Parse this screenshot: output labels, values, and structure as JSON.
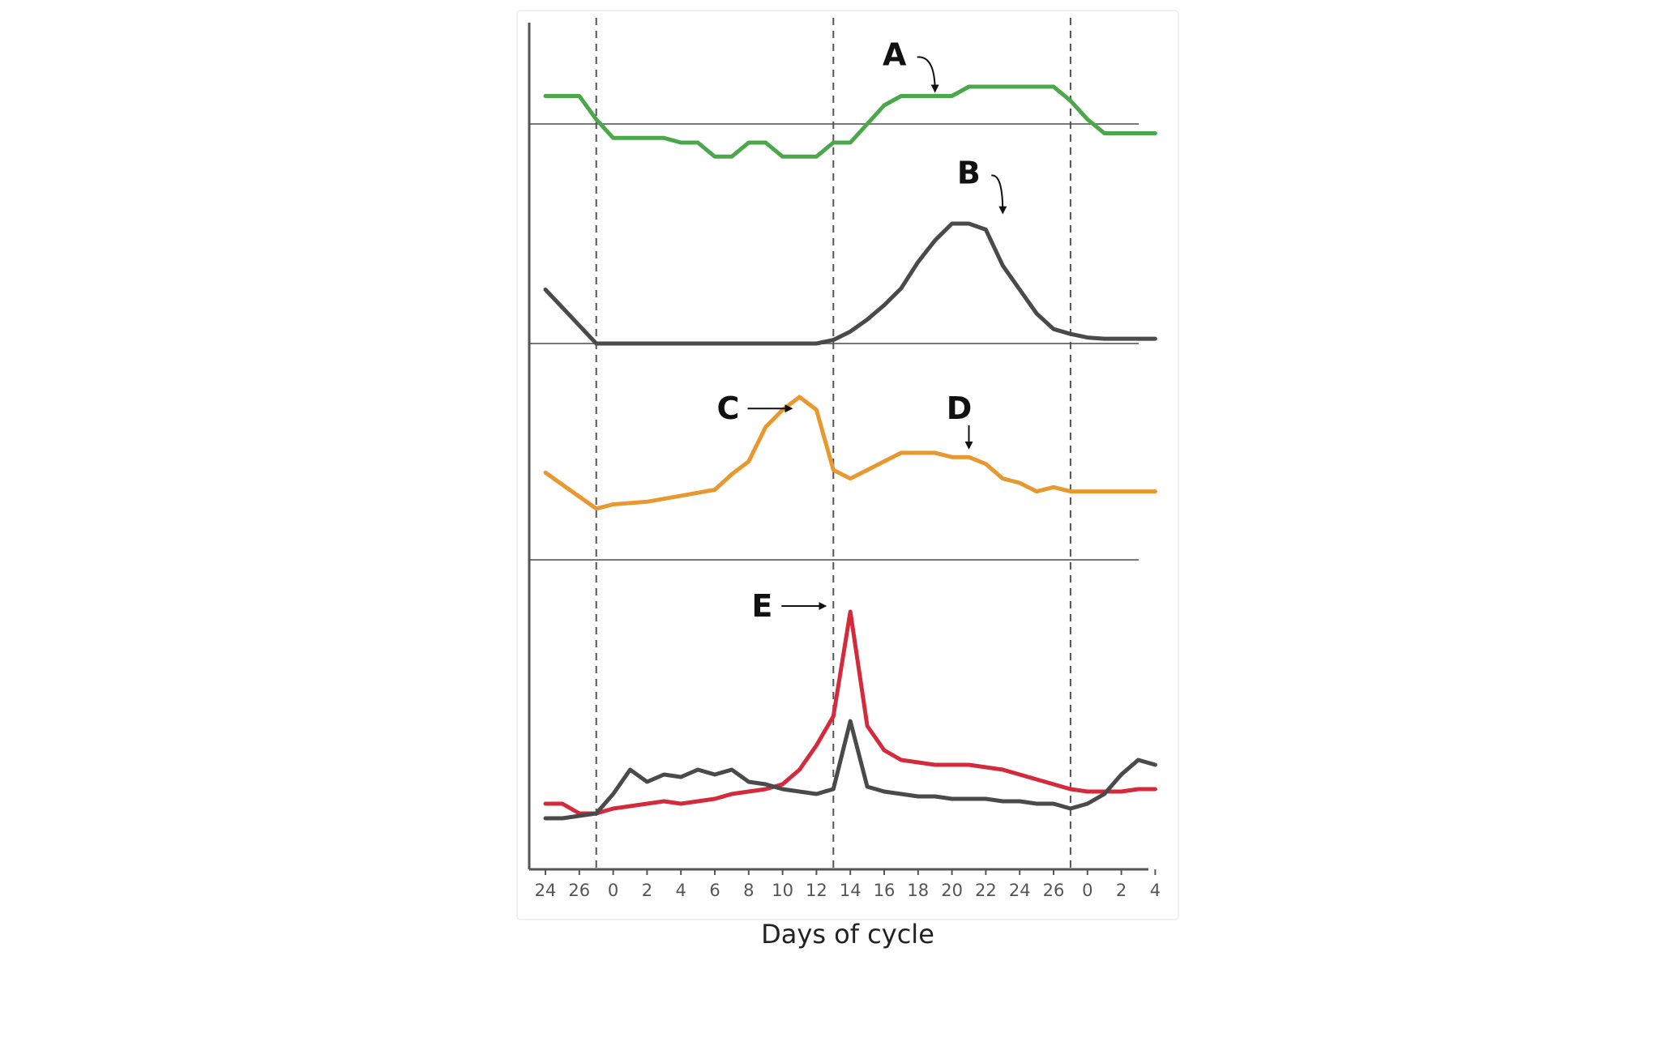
{
  "chart_data": {
    "type": "line",
    "xlabel": "Days of cycle",
    "tick_labels": [
      "24",
      "26",
      "0",
      "2",
      "4",
      "6",
      "8",
      "10",
      "12",
      "14",
      "16",
      "18",
      "20",
      "22",
      "24",
      "26",
      "0",
      "2",
      "4"
    ],
    "panels": [
      {
        "series": [
          {
            "color": "#4aa84a",
            "x": [
              0,
              2,
              3,
              4,
              5,
              6,
              7,
              8,
              9,
              10,
              11,
              12,
              13,
              14,
              15,
              16,
              17,
              18,
              19,
              20,
              21,
              22,
              23,
              24,
              25,
              26,
              27,
              28,
              29,
              30,
              31,
              32,
              33,
              34,
              35,
              36
            ],
            "y": [
              0.3,
              0.3,
              0.05,
              -0.15,
              -0.15,
              -0.15,
              -0.15,
              -0.2,
              -0.2,
              -0.35,
              -0.35,
              -0.2,
              -0.2,
              -0.35,
              -0.35,
              -0.35,
              -0.2,
              -0.2,
              0.0,
              0.2,
              0.3,
              0.3,
              0.3,
              0.3,
              0.4,
              0.4,
              0.4,
              0.4,
              0.4,
              0.4,
              0.25,
              0.05,
              -0.1,
              -0.1,
              -0.1,
              -0.1
            ]
          }
        ],
        "annotations": [
          {
            "label": "A",
            "x": 23,
            "y": 0.3
          }
        ]
      },
      {
        "series": [
          {
            "color": "#4a4a4a",
            "x": [
              0,
              3,
              4,
              6,
              8,
              10,
              12,
              14,
              16,
              17,
              18,
              19,
              20,
              21,
              22,
              23,
              24,
              25,
              26,
              27,
              28,
              29,
              30,
              31,
              32,
              33,
              34,
              35,
              36
            ],
            "y": [
              0.45,
              0.0,
              0.0,
              0.0,
              0.0,
              0.0,
              0.0,
              0.0,
              0.0,
              0.03,
              0.1,
              0.2,
              0.32,
              0.46,
              0.68,
              0.86,
              1.0,
              1.0,
              0.95,
              0.65,
              0.45,
              0.25,
              0.12,
              0.08,
              0.05,
              0.04,
              0.04,
              0.04,
              0.04
            ]
          }
        ],
        "annotations": [
          {
            "label": "B",
            "x": 27,
            "y": 1.05
          }
        ]
      },
      {
        "series": [
          {
            "color": "#e8982e",
            "x": [
              0,
              3,
              4,
              6,
              8,
              10,
              11,
              12,
              13,
              14,
              15,
              16,
              17,
              18,
              19,
              20,
              21,
              22,
              23,
              24,
              25,
              26,
              27,
              28,
              29,
              30,
              31,
              32,
              33,
              34,
              35,
              36
            ],
            "y": [
              0.12,
              -0.3,
              -0.25,
              -0.22,
              -0.15,
              -0.08,
              0.1,
              0.25,
              0.65,
              0.85,
              1.0,
              0.85,
              0.15,
              0.05,
              0.15,
              0.25,
              0.35,
              0.35,
              0.35,
              0.3,
              0.3,
              0.22,
              0.05,
              0.0,
              -0.1,
              -0.05,
              -0.1,
              -0.1,
              -0.1,
              -0.1,
              -0.1,
              -0.1
            ]
          }
        ],
        "annotations": [
          {
            "label": "C",
            "x": 15,
            "y": 0.8
          },
          {
            "label": "D",
            "x": 25,
            "y": 0.35
          }
        ]
      },
      {
        "series": [
          {
            "color": "#d42a3c",
            "x": [
              0,
              1,
              2,
              3,
              4,
              5,
              6,
              7,
              8,
              9,
              10,
              11,
              12,
              13,
              14,
              15,
              16,
              17,
              18,
              19,
              20,
              21,
              22,
              23,
              24,
              25,
              26,
              27,
              28,
              29,
              30,
              31,
              32,
              33,
              34,
              35,
              36
            ],
            "y": [
              0.06,
              0.06,
              0.02,
              0.02,
              0.04,
              0.05,
              0.06,
              0.07,
              0.06,
              0.07,
              0.08,
              0.1,
              0.11,
              0.12,
              0.14,
              0.2,
              0.3,
              0.42,
              0.85,
              0.38,
              0.28,
              0.24,
              0.23,
              0.22,
              0.22,
              0.22,
              0.21,
              0.2,
              0.18,
              0.16,
              0.14,
              0.12,
              0.11,
              0.11,
              0.11,
              0.12,
              0.12
            ]
          },
          {
            "color": "#4a4a4a",
            "x": [
              0,
              1,
              2,
              3,
              4,
              5,
              6,
              7,
              8,
              9,
              10,
              11,
              12,
              13,
              14,
              15,
              16,
              17,
              18,
              19,
              20,
              21,
              22,
              23,
              24,
              25,
              26,
              27,
              28,
              29,
              30,
              31,
              32,
              33,
              34,
              35,
              36
            ],
            "y": [
              0.0,
              0.0,
              0.01,
              0.02,
              0.1,
              0.2,
              0.15,
              0.18,
              0.17,
              0.2,
              0.18,
              0.2,
              0.15,
              0.14,
              0.12,
              0.11,
              0.1,
              0.12,
              0.4,
              0.13,
              0.11,
              0.1,
              0.09,
              0.09,
              0.08,
              0.08,
              0.08,
              0.07,
              0.07,
              0.06,
              0.06,
              0.04,
              0.06,
              0.1,
              0.18,
              0.24,
              0.22
            ]
          }
        ],
        "annotations": [
          {
            "label": "E",
            "x": 17,
            "y": 0.85
          }
        ]
      }
    ]
  }
}
